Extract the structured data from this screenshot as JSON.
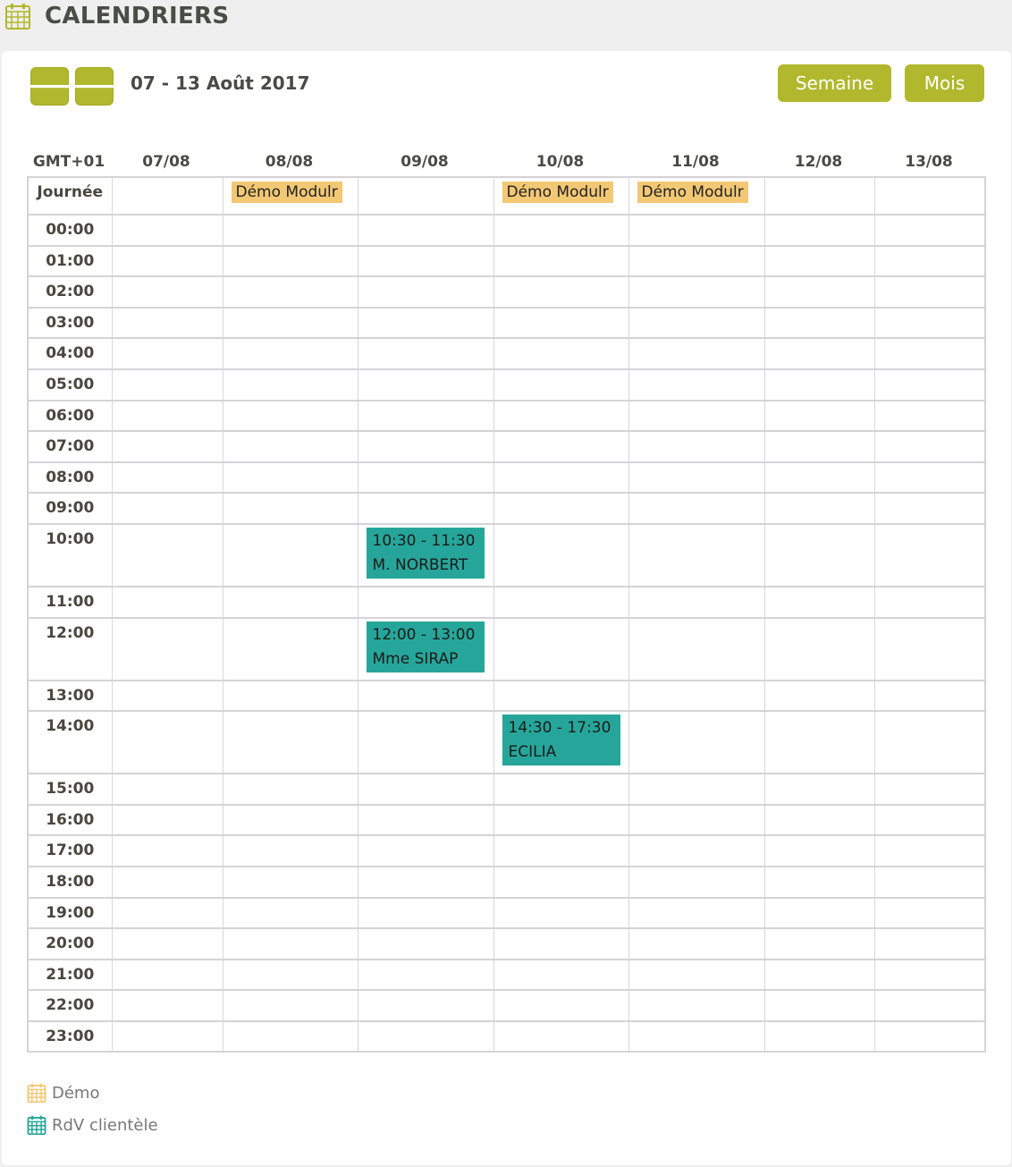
{
  "page": {
    "title": "CALENDRIERS",
    "icon": "calendar-icon"
  },
  "toolbar": {
    "prev": "previous-week",
    "next": "next-week",
    "range": "07 - 13 Août 2017",
    "week_label": "Semaine",
    "month_label": "Mois"
  },
  "colors": {
    "accent": "#b1b82d",
    "demo": "#f2c874",
    "rdv": "#26a69a"
  },
  "calendar": {
    "tz": "GMT+01",
    "allday_label": "Journée",
    "days": [
      "07/08",
      "08/08",
      "09/08",
      "10/08",
      "11/08",
      "12/08",
      "13/08"
    ],
    "allday": [
      null,
      "Démo Modulr",
      null,
      "Démo Modulr",
      "Démo Modulr",
      null,
      null
    ],
    "hours": [
      "00:00",
      "01:00",
      "02:00",
      "03:00",
      "04:00",
      "05:00",
      "06:00",
      "07:00",
      "08:00",
      "09:00",
      "10:00",
      "11:00",
      "12:00",
      "13:00",
      "14:00",
      "15:00",
      "16:00",
      "17:00",
      "18:00",
      "19:00",
      "20:00",
      "21:00",
      "22:00",
      "23:00"
    ],
    "events": [
      {
        "day": 2,
        "hour": 10,
        "time": "10:30 - 11:30",
        "name": "M. NORBERT"
      },
      {
        "day": 2,
        "hour": 12,
        "time": "12:00 - 13:00",
        "name": "Mme SIRAP"
      },
      {
        "day": 3,
        "hour": 14,
        "time": "14:30 - 17:30",
        "name": "ECILIA"
      }
    ]
  },
  "legend": [
    {
      "label": "Démo",
      "color": "#f2c874"
    },
    {
      "label": "RdV clientèle",
      "color": "#26a69a"
    }
  ]
}
